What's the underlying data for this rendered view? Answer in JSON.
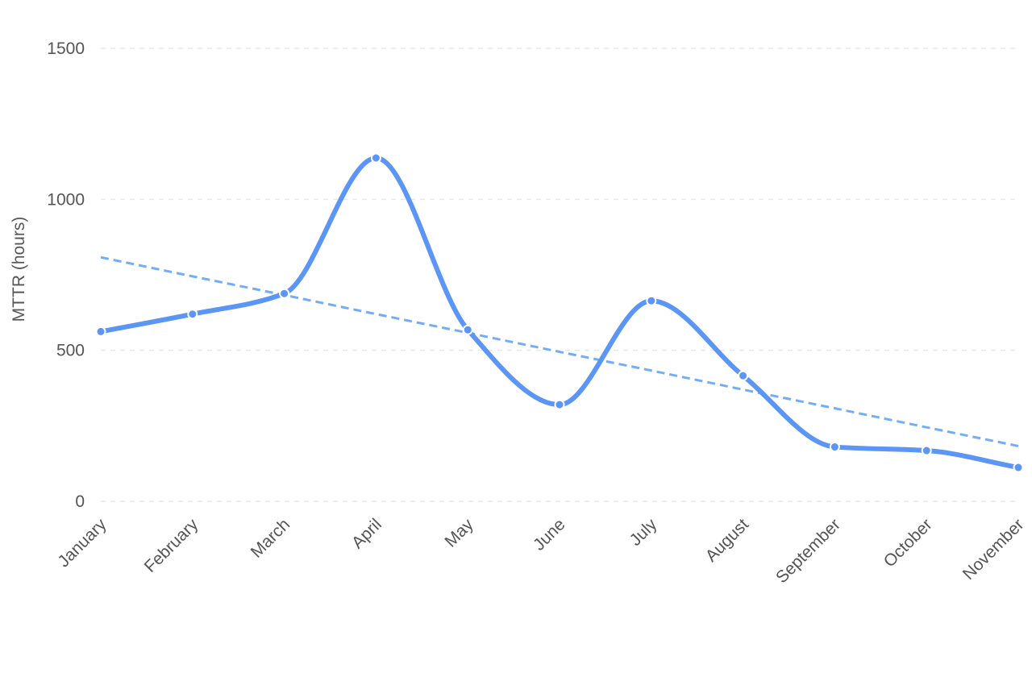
{
  "chart_data": {
    "type": "line",
    "title": "",
    "xlabel": "",
    "ylabel": "MTTR (hours)",
    "categories": [
      "January",
      "February",
      "March",
      "April",
      "May",
      "June",
      "July",
      "August",
      "September",
      "October",
      "November"
    ],
    "series": [
      {
        "values": [
          562,
          620,
          688,
          1137,
          568,
          320,
          664,
          416,
          180,
          168,
          112
        ],
        "color": "#5b95f5",
        "style": "smooth-line-with-markers"
      },
      {
        "values": [
          808,
          745,
          683,
          620,
          558,
          495,
          433,
          370,
          308,
          245,
          183
        ],
        "color": "#74adf7",
        "style": "dashed-trend-line"
      }
    ],
    "ylim": [
      0,
      1500
    ],
    "yticks": [
      "0",
      "500",
      "1000",
      "1500"
    ],
    "grid": true,
    "legend": "none"
  }
}
